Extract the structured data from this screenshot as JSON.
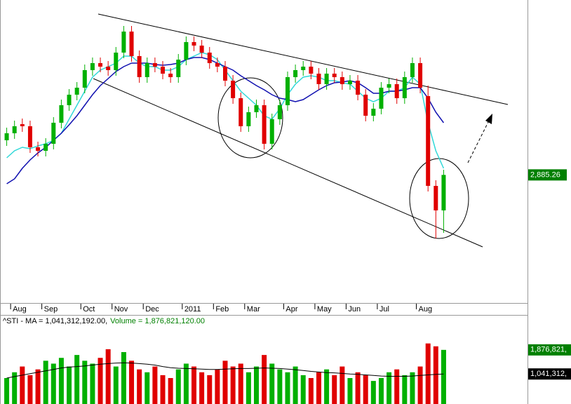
{
  "chart_data": [
    {
      "type": "candlestick",
      "categories": [
        null,
        "Aug",
        null,
        null,
        null,
        "Sep",
        null,
        null,
        null,
        null,
        "Oct",
        null,
        null,
        null,
        "Nov",
        null,
        null,
        null,
        "Dec",
        null,
        null,
        null,
        null,
        "2011",
        null,
        null,
        null,
        "Feb",
        null,
        null,
        null,
        "Mar",
        null,
        null,
        null,
        null,
        "Apr",
        null,
        null,
        null,
        "May",
        null,
        null,
        null,
        "Jun",
        null,
        null,
        null,
        "Jul",
        null,
        null,
        null,
        null,
        "Aug",
        null,
        null,
        null
      ],
      "open": [
        2984,
        3004,
        3030,
        3024,
        2964,
        2954,
        2974,
        3034,
        3084,
        3114,
        3134,
        3184,
        3204,
        3194,
        3184,
        3234,
        3294,
        3224,
        3164,
        3204,
        3194,
        3174,
        3164,
        3214,
        3264,
        3254,
        3234,
        3204,
        3194,
        3154,
        3104,
        3024,
        3064,
        3084,
        2974,
        3044,
        3084,
        3164,
        3184,
        3194,
        3174,
        3144,
        3174,
        3164,
        3144,
        3154,
        3114,
        3054,
        3074,
        3134,
        3144,
        3104,
        3164,
        3204,
        3110,
        2854,
        2784
      ],
      "high": [
        3020,
        3040,
        3046,
        3040,
        2980,
        2990,
        3050,
        3100,
        3130,
        3150,
        3200,
        3220,
        3220,
        3210,
        3250,
        3310,
        3310,
        3240,
        3220,
        3220,
        3210,
        3190,
        3230,
        3280,
        3280,
        3270,
        3250,
        3220,
        3210,
        3170,
        3120,
        3080,
        3100,
        3100,
        3060,
        3100,
        3180,
        3200,
        3210,
        3210,
        3190,
        3190,
        3190,
        3180,
        3170,
        3170,
        3130,
        3090,
        3150,
        3160,
        3160,
        3180,
        3220,
        3220,
        3140,
        2870,
        2900
      ],
      "low": [
        2968,
        2988,
        3008,
        2948,
        2938,
        2938,
        2958,
        3018,
        3068,
        3098,
        3118,
        3168,
        3178,
        3168,
        3168,
        3218,
        3208,
        3148,
        3148,
        3178,
        3158,
        3148,
        3148,
        3198,
        3238,
        3218,
        3188,
        3178,
        3138,
        3088,
        3008,
        3008,
        3048,
        2958,
        2958,
        3028,
        3068,
        3148,
        3168,
        3158,
        3128,
        3128,
        3148,
        3128,
        3128,
        3098,
        3038,
        3038,
        3058,
        3118,
        3088,
        3088,
        3148,
        3118,
        2838,
        2704,
        2720
      ],
      "close": [
        3004,
        3024,
        3024,
        2964,
        2954,
        2974,
        3034,
        3084,
        3114,
        3134,
        3184,
        3204,
        3194,
        3184,
        3234,
        3294,
        3224,
        3164,
        3204,
        3194,
        3174,
        3164,
        3214,
        3264,
        3254,
        3234,
        3204,
        3194,
        3154,
        3104,
        3024,
        3064,
        3084,
        2974,
        3044,
        3084,
        3164,
        3184,
        3194,
        3174,
        3144,
        3174,
        3164,
        3144,
        3154,
        3114,
        3054,
        3074,
        3134,
        3144,
        3104,
        3164,
        3204,
        3134,
        2854,
        2784,
        2885.26
      ],
      "last_close_label": "2,885.26",
      "up_color": "#00b000",
      "down_color": "#e00000",
      "label_color": "#008000",
      "ma_lines": [
        {
          "color": "#30d8d8",
          "values": [
            2934,
            2954,
            2964,
            2960,
            2968,
            2974,
            2984,
            3004,
            3044,
            3084,
            3124,
            3164,
            3184,
            3194,
            3204,
            3224,
            3224,
            3204,
            3194,
            3194,
            3184,
            3184,
            3194,
            3214,
            3224,
            3234,
            3228,
            3214,
            3184,
            3154,
            3124,
            3104,
            3084,
            3054,
            3044,
            3074,
            3114,
            3144,
            3164,
            3168,
            3164,
            3154,
            3154,
            3148,
            3144,
            3124,
            3104,
            3094,
            3104,
            3124,
            3124,
            3134,
            3164,
            3144,
            3034,
            2954,
            2904
          ]
        },
        {
          "color": "#1010b0",
          "values": [
            2860,
            2874,
            2904,
            2928,
            2948,
            2964,
            2984,
            3004,
            3028,
            3054,
            3084,
            3114,
            3140,
            3160,
            3180,
            3194,
            3204,
            3204,
            3204,
            3200,
            3198,
            3200,
            3204,
            3214,
            3220,
            3220,
            3214,
            3204,
            3194,
            3184,
            3168,
            3154,
            3140,
            3128,
            3114,
            3104,
            3100,
            3094,
            3100,
            3114,
            3128,
            3140,
            3148,
            3150,
            3154,
            3148,
            3134,
            3118,
            3118,
            3124,
            3124,
            3128,
            3134,
            3134,
            3104,
            3064,
            3034
          ]
        }
      ],
      "ylim": [
        2520,
        3384
      ]
    },
    {
      "type": "bar",
      "legend": {
        "ma": "^STI - MA = 1,041,312,192.00,",
        "volume": "Volume = 1,876,821,120.00"
      },
      "values": [
        900000000,
        1100000000,
        1300000000,
        1000000000,
        1200000000,
        1500000000,
        1400000000,
        1600000000,
        1300000000,
        1700000000,
        1500000000,
        1400000000,
        1600000000,
        1900000000,
        1300000000,
        1800000000,
        1500000000,
        1200000000,
        1100000000,
        1300000000,
        1000000000,
        900000000,
        1200000000,
        1400000000,
        1300000000,
        1100000000,
        1000000000,
        1200000000,
        1500000000,
        1300000000,
        1400000000,
        1100000000,
        1300000000,
        1700000000,
        1400000000,
        1200000000,
        1100000000,
        1300000000,
        1000000000,
        900000000,
        1100000000,
        1200000000,
        1000000000,
        1300000000,
        900000000,
        1100000000,
        1000000000,
        800000000,
        900000000,
        1100000000,
        1200000000,
        1000000000,
        1100000000,
        1300000000,
        2100000000,
        2000000000,
        1876821120
      ],
      "value_label": "1,876,821,",
      "ma": {
        "color": "#000000",
        "values": [
          900000000,
          950000000,
          1000000000,
          1050000000,
          1100000000,
          1150000000,
          1200000000,
          1250000000,
          1280000000,
          1300000000,
          1320000000,
          1350000000,
          1380000000,
          1400000000,
          1420000000,
          1430000000,
          1420000000,
          1400000000,
          1380000000,
          1350000000,
          1300000000,
          1260000000,
          1240000000,
          1230000000,
          1220000000,
          1210000000,
          1200000000,
          1200000000,
          1210000000,
          1220000000,
          1230000000,
          1230000000,
          1240000000,
          1250000000,
          1240000000,
          1230000000,
          1210000000,
          1190000000,
          1160000000,
          1130000000,
          1110000000,
          1090000000,
          1080000000,
          1060000000,
          1040000000,
          1030000000,
          1010000000,
          990000000,
          970000000,
          960000000,
          960000000,
          960000000,
          970000000,
          990000000,
          1010000000,
          1030000000,
          1041312192
        ]
      },
      "ma_label": "1,041,312,",
      "ylim": [
        0,
        2700000000
      ]
    }
  ]
}
